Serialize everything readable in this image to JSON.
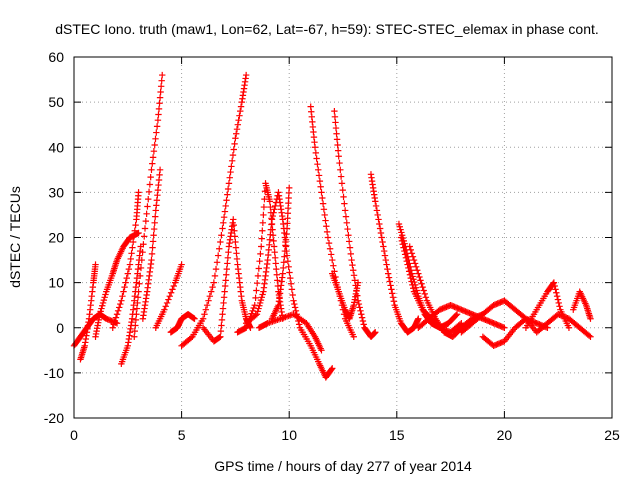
{
  "chart_data": {
    "type": "scatter",
    "title": "dSTEC Iono. truth (maw1, Lon=62, Lat=-67, h=59): STEC-STEC_elemax in phase cont.",
    "xlabel": "GPS time / hours of day 277 of year 2014",
    "ylabel": "dSTEC  / TECUs",
    "xlim": [
      0,
      25
    ],
    "ylim": [
      -20,
      60
    ],
    "xticks": [
      0,
      5,
      10,
      15,
      20,
      25
    ],
    "yticks": [
      -20,
      -10,
      0,
      10,
      20,
      30,
      40,
      50,
      60
    ],
    "grid": true,
    "marker": "+",
    "color": "#ff0000",
    "series": [
      {
        "x": [
          0.0,
          0.3,
          0.6,
          0.9,
          1.2,
          1.5,
          2.0
        ],
        "y": [
          -4,
          -2,
          0,
          2,
          3,
          2,
          1
        ]
      },
      {
        "x": [
          0.3,
          0.5,
          0.7,
          0.9,
          1.0
        ],
        "y": [
          -7,
          -4,
          2,
          10,
          14
        ]
      },
      {
        "x": [
          1.0,
          1.2,
          1.5,
          1.8,
          2.0,
          2.3,
          2.6,
          3.0
        ],
        "y": [
          -2,
          3,
          8,
          12,
          15,
          18,
          20,
          21
        ]
      },
      {
        "x": [
          1.8,
          2.2,
          2.6,
          2.9,
          3.0
        ],
        "y": [
          0,
          6,
          14,
          24,
          30
        ]
      },
      {
        "x": [
          2.2,
          2.5,
          2.7,
          2.9,
          3.1
        ],
        "y": [
          -8,
          -4,
          2,
          10,
          18
        ]
      },
      {
        "x": [
          2.8,
          3.0,
          3.3,
          3.6,
          3.9,
          4.1
        ],
        "y": [
          -2,
          8,
          22,
          35,
          46,
          56
        ]
      },
      {
        "x": [
          3.2,
          3.4,
          3.6,
          3.8,
          4.0
        ],
        "y": [
          2,
          8,
          15,
          26,
          35
        ]
      },
      {
        "x": [
          3.8,
          4.2,
          4.7,
          5.0
        ],
        "y": [
          0,
          4,
          10,
          14
        ]
      },
      {
        "x": [
          4.5,
          4.8,
          5.0,
          5.3,
          5.6
        ],
        "y": [
          -1,
          0,
          2,
          3,
          2
        ]
      },
      {
        "x": [
          5.0,
          5.5,
          6.0,
          6.5,
          6.9,
          7.2,
          7.5,
          7.8,
          8.0
        ],
        "y": [
          -4,
          -2,
          2,
          10,
          22,
          32,
          42,
          50,
          56
        ]
      },
      {
        "x": [
          6.0,
          6.5,
          6.8,
          7.0,
          7.2,
          7.4,
          7.6,
          7.8,
          8.0,
          8.2
        ],
        "y": [
          0,
          -3,
          -2,
          8,
          18,
          24,
          14,
          6,
          2,
          0
        ]
      },
      {
        "x": [
          7.6,
          8.0,
          8.4,
          8.7,
          8.9,
          9.1,
          9.3,
          9.5,
          9.7
        ],
        "y": [
          -1,
          0,
          5,
          18,
          32,
          28,
          18,
          8,
          2
        ]
      },
      {
        "x": [
          8.0,
          8.5,
          8.8,
          9.0,
          9.2,
          9.5,
          9.7,
          9.9,
          10.2,
          10.5,
          11.0,
          11.4,
          11.7,
          12.0
        ],
        "y": [
          1,
          3,
          8,
          15,
          24,
          30,
          24,
          16,
          6,
          0,
          -4,
          -8,
          -11,
          -9
        ]
      },
      {
        "x": [
          9.2,
          9.5,
          9.7,
          9.9,
          10.0
        ],
        "y": [
          2,
          5,
          12,
          22,
          31
        ]
      },
      {
        "x": [
          8.6,
          9.0,
          9.6,
          10.2,
          10.8,
          11.2,
          11.5
        ],
        "y": [
          0,
          1,
          2,
          3,
          1,
          -2,
          -5
        ]
      },
      {
        "x": [
          11.0,
          11.2,
          11.5,
          11.8,
          12.2,
          12.6,
          13.0
        ],
        "y": [
          49,
          40,
          30,
          20,
          10,
          2,
          -2
        ]
      },
      {
        "x": [
          12.1,
          12.3,
          12.6,
          12.9,
          13.2,
          13.5,
          13.8,
          14.0
        ],
        "y": [
          48,
          38,
          26,
          15,
          6,
          0,
          -2,
          -1
        ]
      },
      {
        "x": [
          12.0,
          12.3,
          12.6,
          12.8,
          13.0,
          13.2
        ],
        "y": [
          12,
          8,
          4,
          2,
          5,
          10
        ]
      },
      {
        "x": [
          13.8,
          14.0,
          14.3,
          14.6,
          14.9,
          15.2,
          15.5,
          15.8,
          16.0
        ],
        "y": [
          34,
          28,
          20,
          12,
          5,
          1,
          -1,
          0,
          2
        ]
      },
      {
        "x": [
          15.1,
          15.4,
          15.7,
          16.0,
          16.3,
          16.6,
          17.0,
          17.4,
          17.8
        ],
        "y": [
          23,
          18,
          12,
          7,
          3,
          1,
          0,
          1,
          3
        ]
      },
      {
        "x": [
          15.2,
          15.5,
          15.8,
          16.2,
          16.6,
          17.0,
          17.5,
          18.0
        ],
        "y": [
          20,
          14,
          8,
          4,
          2,
          0,
          -1,
          1
        ]
      },
      {
        "x": [
          15.6,
          16.0,
          16.4,
          16.8,
          17.2,
          17.6,
          18.0,
          18.5,
          19.0
        ],
        "y": [
          18,
          12,
          6,
          2,
          -1,
          -2,
          0,
          2,
          3
        ]
      },
      {
        "x": [
          16.0,
          16.5,
          17.0,
          17.5,
          18.0,
          18.5,
          19.0,
          19.5,
          20.0
        ],
        "y": [
          0,
          2,
          4,
          5,
          4,
          3,
          2,
          1,
          0
        ]
      },
      {
        "x": [
          18.0,
          18.5,
          19.0,
          19.5,
          20.0,
          20.5,
          21.0,
          21.5,
          22.0
        ],
        "y": [
          -1,
          1,
          3,
          5,
          6,
          4,
          2,
          1,
          0
        ]
      },
      {
        "x": [
          19.0,
          19.5,
          20.0,
          20.5,
          21.0,
          21.5,
          22.0,
          22.5,
          23.0,
          23.5,
          24.0
        ],
        "y": [
          -2,
          -4,
          -3,
          0,
          2,
          -1,
          1,
          3,
          2,
          0,
          -2
        ]
      },
      {
        "x": [
          21.0,
          21.5,
          22.0,
          22.3,
          22.6,
          23.0
        ],
        "y": [
          0,
          4,
          8,
          10,
          4,
          0
        ]
      },
      {
        "x": [
          23.2,
          23.5,
          23.8,
          24.0
        ],
        "y": [
          4,
          8,
          5,
          2
        ]
      }
    ]
  }
}
